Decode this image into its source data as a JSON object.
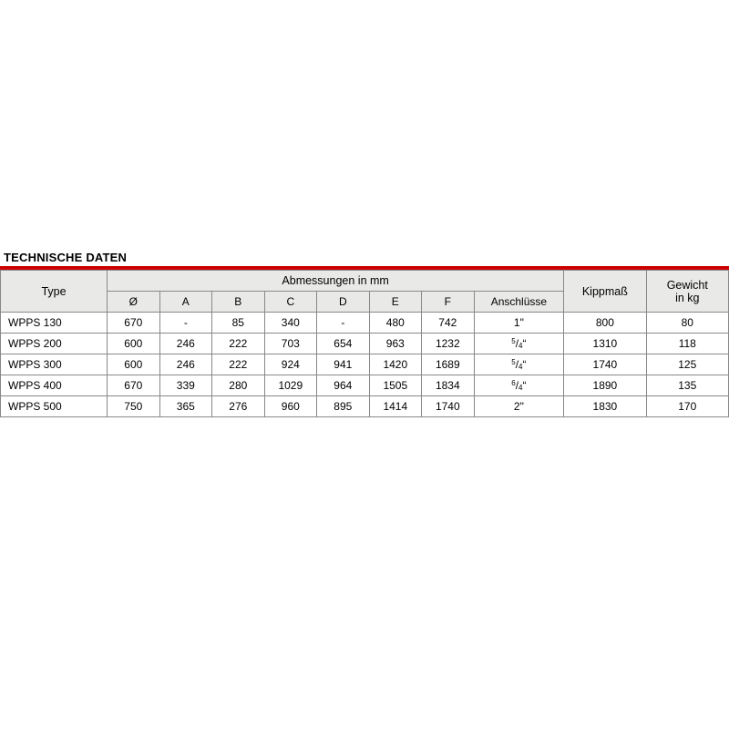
{
  "title": "TECHNISCHE DATEN",
  "group_header": "Abmessungen in mm",
  "columns": {
    "type": "Type",
    "dia": "Ø",
    "A": "A",
    "B": "B",
    "C": "C",
    "D": "D",
    "E": "E",
    "F": "F",
    "ansch": "Anschlüsse",
    "kipp": "Kippmaß",
    "gewicht_l1": "Gewicht",
    "gewicht_l2": "in kg"
  },
  "rows": [
    {
      "type": "WPPS 130",
      "dia": "670",
      "A": "-",
      "B": "85",
      "C": "340",
      "D": "-",
      "E": "480",
      "F": "742",
      "ansch": "1\"",
      "kipp": "800",
      "gew": "80"
    },
    {
      "type": "WPPS 200",
      "dia": "600",
      "A": "246",
      "B": "222",
      "C": "703",
      "D": "654",
      "E": "963",
      "F": "1232",
      "ansch_frac": {
        "n": "5",
        "d": "4"
      },
      "kipp": "1310",
      "gew": "118"
    },
    {
      "type": "WPPS 300",
      "dia": "600",
      "A": "246",
      "B": "222",
      "C": "924",
      "D": "941",
      "E": "1420",
      "F": "1689",
      "ansch_frac": {
        "n": "5",
        "d": "4"
      },
      "kipp": "1740",
      "gew": "125"
    },
    {
      "type": "WPPS 400",
      "dia": "670",
      "A": "339",
      "B": "280",
      "C": "1029",
      "D": "964",
      "E": "1505",
      "F": "1834",
      "ansch_frac": {
        "n": "6",
        "d": "4"
      },
      "kipp": "1890",
      "gew": "135"
    },
    {
      "type": "WPPS 500",
      "dia": "750",
      "A": "365",
      "B": "276",
      "C": "960",
      "D": "895",
      "E": "1414",
      "F": "1740",
      "ansch": "2\"",
      "kipp": "1830",
      "gew": "170"
    }
  ],
  "colwidths": {
    "type": 114,
    "dia": 56,
    "A": 56,
    "B": 56,
    "C": 56,
    "D": 56,
    "E": 56,
    "F": 56,
    "ansch": 96,
    "kipp": 88,
    "gew": 88
  },
  "style": {
    "title_color": "#000",
    "bar_color": "#c00",
    "header_bg": "#e9e9e8",
    "border_color": "#888",
    "fontsize": 12
  }
}
